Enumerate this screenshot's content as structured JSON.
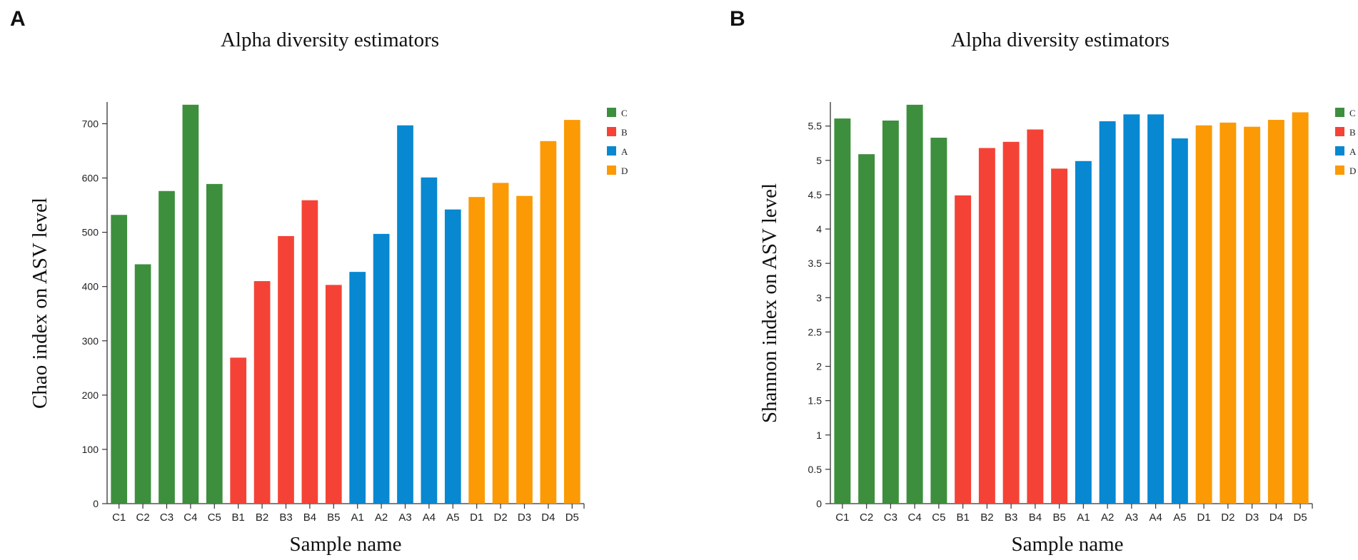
{
  "chart_data": [
    {
      "panel_label": "A",
      "type": "bar",
      "title": "Alpha diversity estimators",
      "xlabel": "Sample name",
      "ylabel": "Chao index on ASV level",
      "categories": [
        "C1",
        "C2",
        "C3",
        "C4",
        "C5",
        "B1",
        "B2",
        "B3",
        "B4",
        "B5",
        "A1",
        "A2",
        "A3",
        "A4",
        "A5",
        "D1",
        "D2",
        "D3",
        "D4",
        "D5"
      ],
      "groups": [
        "C",
        "C",
        "C",
        "C",
        "C",
        "B",
        "B",
        "B",
        "B",
        "B",
        "A",
        "A",
        "A",
        "A",
        "A",
        "D",
        "D",
        "D",
        "D",
        "D"
      ],
      "values": [
        532,
        441,
        576,
        735,
        589,
        269,
        410,
        493,
        559,
        403,
        427,
        497,
        697,
        601,
        542,
        565,
        591,
        567,
        668,
        707
      ],
      "ylim": [
        0,
        740
      ],
      "yticks": [
        0,
        100,
        200,
        300,
        400,
        500,
        600,
        700
      ],
      "ytick_labels": [
        "0",
        "100",
        "200",
        "300",
        "400",
        "500",
        "600",
        "700"
      ],
      "grid": false,
      "legend_position": "top-right"
    },
    {
      "panel_label": "B",
      "type": "bar",
      "title": "Alpha diversity estimators",
      "xlabel": "Sample name",
      "ylabel": "Shannon index on ASV level",
      "categories": [
        "C1",
        "C2",
        "C3",
        "C4",
        "C5",
        "B1",
        "B2",
        "B3",
        "B4",
        "B5",
        "A1",
        "A2",
        "A3",
        "A4",
        "A5",
        "D1",
        "D2",
        "D3",
        "D4",
        "D5"
      ],
      "groups": [
        "C",
        "C",
        "C",
        "C",
        "C",
        "B",
        "B",
        "B",
        "B",
        "B",
        "A",
        "A",
        "A",
        "A",
        "A",
        "D",
        "D",
        "D",
        "D",
        "D"
      ],
      "values": [
        5.61,
        5.09,
        5.58,
        5.81,
        5.33,
        4.49,
        5.18,
        5.27,
        5.45,
        4.88,
        4.99,
        5.57,
        5.67,
        5.67,
        5.32,
        5.51,
        5.55,
        5.49,
        5.59,
        5.7
      ],
      "ylim": [
        0,
        5.85
      ],
      "yticks": [
        0,
        0.5,
        1,
        1.5,
        2,
        2.5,
        3,
        3.5,
        4,
        4.5,
        5,
        5.5
      ],
      "ytick_labels": [
        "0",
        "0.5",
        "1",
        "1.5",
        "2",
        "2.5",
        "3",
        "3.5",
        "4",
        "4.5",
        "5",
        "5.5"
      ],
      "grid": false,
      "legend_position": "top-right"
    }
  ],
  "legend": [
    {
      "label": "C",
      "color": "#3d8f3d"
    },
    {
      "label": "B",
      "color": "#f44336"
    },
    {
      "label": "A",
      "color": "#0788d1"
    },
    {
      "label": "D",
      "color": "#fb9a05"
    }
  ]
}
